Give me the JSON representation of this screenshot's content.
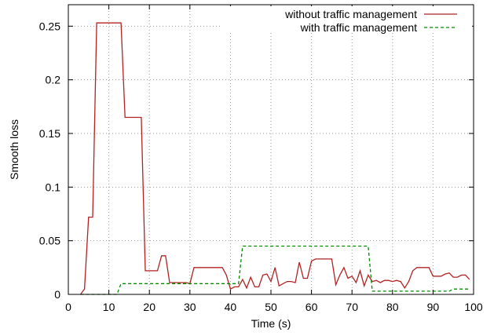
{
  "chart_data": {
    "type": "line",
    "title": "",
    "xlabel": "Time (s)",
    "ylabel": "Smooth loss",
    "xlim": [
      0,
      100
    ],
    "ylim": [
      0,
      0.27
    ],
    "x_ticks": [
      0,
      10,
      20,
      30,
      40,
      50,
      60,
      70,
      80,
      90,
      100
    ],
    "x_tick_labels": [
      "0",
      "10",
      "20",
      "30",
      "40",
      "50",
      "60",
      "70",
      "80",
      "90",
      "100"
    ],
    "y_ticks": [
      0,
      0.05,
      0.1,
      0.15,
      0.2,
      0.25
    ],
    "y_tick_labels": [
      "0",
      "0.05",
      "0.1",
      "0.15",
      "0.2",
      "0.25"
    ],
    "grid": true,
    "legend_position": "top-right",
    "series": [
      {
        "name": "without traffic management",
        "color": "#b22222",
        "dash": "solid",
        "x": [
          3,
          4,
          5,
          6,
          7,
          8,
          9,
          10,
          11,
          12,
          13,
          14,
          15,
          16,
          17,
          18,
          19,
          20,
          21,
          22,
          23,
          24,
          25,
          26,
          27,
          28,
          29,
          30,
          31,
          32,
          33,
          34,
          35,
          36,
          37,
          38,
          39,
          40,
          41,
          42,
          43,
          44,
          45,
          46,
          47,
          48,
          49,
          50,
          51,
          52,
          53,
          54,
          55,
          56,
          57,
          58,
          59,
          60,
          61,
          62,
          63,
          64,
          65,
          66,
          67,
          68,
          69,
          70,
          71,
          72,
          73,
          74,
          75,
          76,
          77,
          78,
          79,
          80,
          81,
          82,
          83,
          84,
          85,
          86,
          87,
          88,
          89,
          90,
          91,
          92,
          93,
          94,
          95,
          96,
          97,
          98,
          99
        ],
        "values": [
          0,
          0.005,
          0.072,
          0.072,
          0.253,
          0.253,
          0.253,
          0.253,
          0.253,
          0.253,
          0.253,
          0.165,
          0.165,
          0.165,
          0.165,
          0.165,
          0.022,
          0.022,
          0.022,
          0.022,
          0.036,
          0.036,
          0.011,
          0.011,
          0.011,
          0.011,
          0.011,
          0.01,
          0.025,
          0.025,
          0.025,
          0.025,
          0.025,
          0.025,
          0.025,
          0.025,
          0.018,
          0.005,
          0.007,
          0.007,
          0.014,
          0.006,
          0.016,
          0.007,
          0.007,
          0.018,
          0.019,
          0.012,
          0.025,
          0.008,
          0.01,
          0.012,
          0.012,
          0.011,
          0.03,
          0.015,
          0.015,
          0.031,
          0.033,
          0.033,
          0.033,
          0.033,
          0.033,
          0.009,
          0.018,
          0.025,
          0.015,
          0.017,
          0.011,
          0.022,
          0.008,
          0.018,
          0.012,
          0.013,
          0.011,
          0.013,
          0.013,
          0.012,
          0.013,
          0.012,
          0.006,
          0.012,
          0.022,
          0.025,
          0.025,
          0.025,
          0.025,
          0.017,
          0.017,
          0.017,
          0.019,
          0.02,
          0.016,
          0.016,
          0.018,
          0.018,
          0.014
        ]
      },
      {
        "name": "with traffic management",
        "color": "#008a00",
        "dash": "dashed",
        "x": [
          3,
          11,
          12,
          13,
          18,
          26,
          32,
          38,
          41,
          42,
          43,
          50,
          60,
          70,
          73,
          74,
          75,
          76,
          77,
          80,
          85,
          90,
          92,
          93,
          94,
          95,
          99
        ],
        "values": [
          0,
          0,
          0,
          0.01,
          0.01,
          0.01,
          0.01,
          0.01,
          0.01,
          0.01,
          0.045,
          0.045,
          0.045,
          0.045,
          0.045,
          0.045,
          0.003,
          0.003,
          0.003,
          0.003,
          0.003,
          0.003,
          0.003,
          0.003,
          0.003,
          0.005,
          0.005
        ]
      }
    ]
  }
}
